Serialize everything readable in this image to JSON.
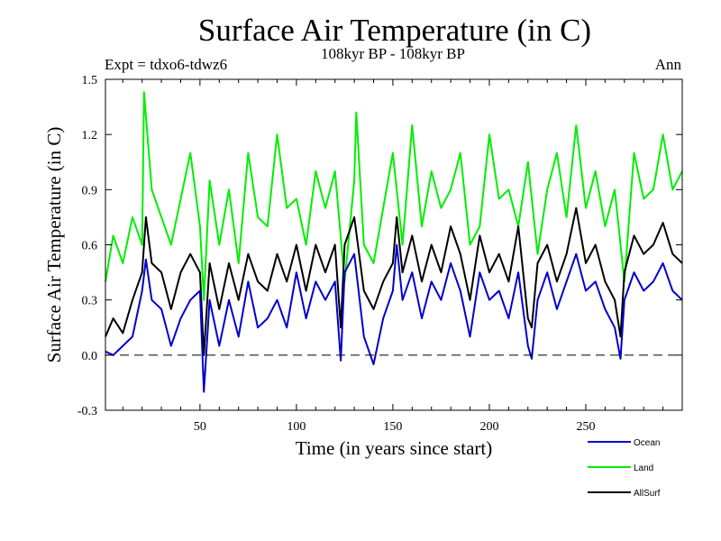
{
  "chart_data": {
    "type": "line",
    "title": "Surface Air Temperature (in C)",
    "subtitle": "108kyr BP - 108kyr BP",
    "experiment": "Expt = tdxo6-tdwz6",
    "season": "Ann",
    "xlabel": "Time (in years since start)",
    "ylabel": "Surface Air Temperature (in C)",
    "xlim": [
      1,
      300
    ],
    "ylim": [
      -0.3,
      1.5
    ],
    "xticks": [
      50,
      100,
      150,
      200,
      250
    ],
    "yticks": [
      -0.3,
      0.0,
      0.3,
      0.6,
      0.9,
      1.2,
      1.5
    ],
    "ytick_labels": [
      "-0.3",
      "0.0",
      "0.3",
      "0.6",
      "0.9",
      "1.2",
      "1.5"
    ],
    "zero_line": "dashed",
    "grid": false,
    "legend_position": "bottom-right",
    "series": [
      {
        "name": "Ocean",
        "color": "#0000cc",
        "x": [
          1,
          5,
          10,
          15,
          20,
          22,
          25,
          30,
          35,
          40,
          45,
          50,
          52,
          55,
          60,
          65,
          70,
          75,
          80,
          85,
          90,
          95,
          100,
          105,
          110,
          115,
          120,
          123,
          125,
          130,
          135,
          140,
          145,
          150,
          152,
          155,
          160,
          165,
          170,
          175,
          180,
          185,
          190,
          195,
          200,
          205,
          210,
          215,
          220,
          222,
          225,
          230,
          235,
          240,
          245,
          250,
          255,
          260,
          265,
          268,
          270,
          275,
          280,
          285,
          290,
          295,
          300
        ],
        "values": [
          0.02,
          0.0,
          0.05,
          0.1,
          0.35,
          0.52,
          0.3,
          0.25,
          0.05,
          0.2,
          0.3,
          0.35,
          -0.2,
          0.3,
          0.05,
          0.3,
          0.1,
          0.4,
          0.15,
          0.2,
          0.3,
          0.15,
          0.45,
          0.2,
          0.4,
          0.3,
          0.4,
          -0.03,
          0.45,
          0.55,
          0.1,
          -0.05,
          0.2,
          0.35,
          0.6,
          0.3,
          0.45,
          0.2,
          0.4,
          0.3,
          0.5,
          0.35,
          0.1,
          0.45,
          0.3,
          0.35,
          0.2,
          0.45,
          0.05,
          -0.02,
          0.3,
          0.45,
          0.25,
          0.4,
          0.55,
          0.35,
          0.4,
          0.25,
          0.15,
          -0.02,
          0.3,
          0.45,
          0.35,
          0.4,
          0.5,
          0.35,
          0.3
        ]
      },
      {
        "name": "Land",
        "color": "#00ee00",
        "x": [
          1,
          5,
          10,
          15,
          20,
          21,
          25,
          30,
          35,
          40,
          45,
          50,
          52,
          55,
          60,
          65,
          70,
          75,
          80,
          85,
          90,
          95,
          100,
          105,
          110,
          115,
          120,
          125,
          130,
          131,
          135,
          140,
          145,
          150,
          155,
          160,
          165,
          170,
          175,
          180,
          185,
          190,
          195,
          200,
          205,
          210,
          215,
          220,
          225,
          230,
          235,
          240,
          245,
          250,
          255,
          260,
          265,
          270,
          275,
          280,
          285,
          290,
          295,
          300
        ],
        "values": [
          0.4,
          0.65,
          0.5,
          0.75,
          0.6,
          1.43,
          0.9,
          0.75,
          0.6,
          0.85,
          1.1,
          0.7,
          0.3,
          0.95,
          0.6,
          0.9,
          0.5,
          1.1,
          0.75,
          0.7,
          1.2,
          0.8,
          0.85,
          0.6,
          1.0,
          0.8,
          1.0,
          0.4,
          0.95,
          1.32,
          0.6,
          0.5,
          0.8,
          1.1,
          0.6,
          1.25,
          0.7,
          1.0,
          0.8,
          0.9,
          1.1,
          0.6,
          0.7,
          1.2,
          0.85,
          0.9,
          0.7,
          1.05,
          0.55,
          0.9,
          1.1,
          0.75,
          1.25,
          0.8,
          1.0,
          0.7,
          0.9,
          0.4,
          1.1,
          0.85,
          0.9,
          1.2,
          0.9,
          1.0
        ]
      },
      {
        "name": "AllSurf",
        "color": "#000000",
        "x": [
          1,
          5,
          10,
          15,
          20,
          22,
          25,
          30,
          35,
          40,
          45,
          50,
          52,
          55,
          60,
          65,
          70,
          75,
          80,
          85,
          90,
          95,
          100,
          105,
          110,
          115,
          120,
          123,
          125,
          130,
          135,
          140,
          145,
          150,
          152,
          155,
          160,
          165,
          170,
          175,
          180,
          185,
          190,
          195,
          200,
          205,
          210,
          215,
          220,
          222,
          225,
          230,
          235,
          240,
          245,
          250,
          255,
          260,
          265,
          268,
          270,
          275,
          280,
          285,
          290,
          295,
          300
        ],
        "values": [
          0.1,
          0.2,
          0.12,
          0.3,
          0.45,
          0.75,
          0.5,
          0.45,
          0.25,
          0.45,
          0.55,
          0.45,
          0.0,
          0.5,
          0.25,
          0.5,
          0.3,
          0.55,
          0.4,
          0.35,
          0.55,
          0.4,
          0.6,
          0.35,
          0.6,
          0.45,
          0.6,
          0.15,
          0.6,
          0.75,
          0.35,
          0.25,
          0.4,
          0.5,
          0.75,
          0.45,
          0.65,
          0.4,
          0.6,
          0.45,
          0.7,
          0.55,
          0.3,
          0.65,
          0.45,
          0.55,
          0.4,
          0.7,
          0.2,
          0.15,
          0.5,
          0.6,
          0.4,
          0.55,
          0.8,
          0.5,
          0.6,
          0.4,
          0.3,
          0.1,
          0.45,
          0.65,
          0.55,
          0.6,
          0.72,
          0.55,
          0.5
        ]
      }
    ]
  }
}
